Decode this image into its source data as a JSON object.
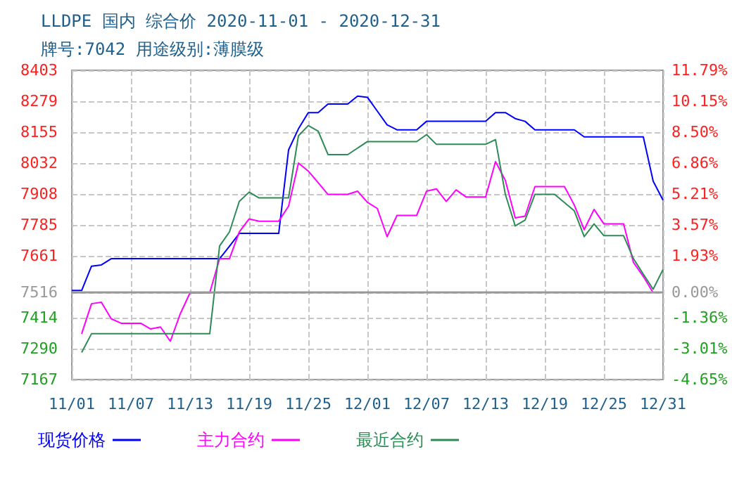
{
  "chart_data": {
    "type": "line",
    "title": "LLDPE 国内 综合价 2020-11-01 - 2020-12-31",
    "subtitle": "牌号:7042 用途级别:薄膜级",
    "xlim": [
      "2020-11-01",
      "2020-12-31"
    ],
    "xticks": [
      {
        "value": "2020-11-01",
        "label": "11/01"
      },
      {
        "value": "2020-11-07",
        "label": "11/07"
      },
      {
        "value": "2020-11-13",
        "label": "11/13"
      },
      {
        "value": "2020-11-19",
        "label": "11/19"
      },
      {
        "value": "2020-11-25",
        "label": "11/25"
      },
      {
        "value": "2020-12-01",
        "label": "12/01"
      },
      {
        "value": "2020-12-07",
        "label": "12/07"
      },
      {
        "value": "2020-12-13",
        "label": "12/13"
      },
      {
        "value": "2020-12-19",
        "label": "12/19"
      },
      {
        "value": "2020-12-25",
        "label": "12/25"
      },
      {
        "value": "2020-12-31",
        "label": "12/31"
      }
    ],
    "ylim": [
      7167,
      8403
    ],
    "yticks": [
      7167,
      7290,
      7414,
      7516,
      7661,
      7785,
      7908,
      8032,
      8155,
      8279,
      8403
    ],
    "y2lim": [
      -4.65,
      11.79
    ],
    "y2ticks": [
      {
        "value": -4.65,
        "label": "-4.65%"
      },
      {
        "value": -3.01,
        "label": "-3.01%"
      },
      {
        "value": -1.36,
        "label": "-1.36%"
      },
      {
        "value": 0,
        "label": "0.00%"
      },
      {
        "value": 1.93,
        "label": "1.93%"
      },
      {
        "value": 3.57,
        "label": "3.57%"
      },
      {
        "value": 5.21,
        "label": "5.21%"
      },
      {
        "value": 6.86,
        "label": "6.86%"
      },
      {
        "value": 8.5,
        "label": "8.50%"
      },
      {
        "value": 10.15,
        "label": "10.15%"
      },
      {
        "value": 11.79,
        "label": "11.79%"
      }
    ],
    "ref_lines": [
      {
        "axis": "y",
        "value": 7516,
        "color": "#999999"
      }
    ],
    "grid": true,
    "legend": "bottom left",
    "marker": "none",
    "line_style": "solid",
    "series": [
      {
        "name": "现货价格",
        "color": "#0000ff",
        "x": [
          "2020-11-01",
          "2020-11-02",
          "2020-11-03",
          "2020-11-04",
          "2020-11-05",
          "2020-11-16",
          "2020-11-17",
          "2020-11-18",
          "2020-11-22",
          "2020-11-23",
          "2020-11-24",
          "2020-11-25",
          "2020-11-26",
          "2020-11-27",
          "2020-11-29",
          "2020-11-30",
          "2020-12-01",
          "2020-12-02",
          "2020-12-03",
          "2020-12-04",
          "2020-12-06",
          "2020-12-07",
          "2020-12-13",
          "2020-12-14",
          "2020-12-15",
          "2020-12-16",
          "2020-12-17",
          "2020-12-18",
          "2020-12-22",
          "2020-12-23",
          "2020-12-29",
          "2020-12-30",
          "2020-12-31"
        ],
        "values": [
          7523,
          7523,
          7620,
          7625,
          7650,
          7650,
          7700,
          7751,
          7751,
          8085,
          8169,
          8234,
          8234,
          8268,
          8268,
          8300,
          8295,
          8240,
          8185,
          8165,
          8165,
          8199,
          8199,
          8234,
          8234,
          8210,
          8199,
          8165,
          8165,
          8137,
          8137,
          7960,
          7884
        ]
      },
      {
        "name": "主力合约",
        "color": "#ff00ff",
        "x": [
          "2020-11-02",
          "2020-11-03",
          "2020-11-04",
          "2020-11-05",
          "2020-11-06",
          "2020-11-08",
          "2020-11-09",
          "2020-11-10",
          "2020-11-11",
          "2020-11-12",
          "2020-11-13",
          "2020-11-15",
          "2020-11-16",
          "2020-11-17",
          "2020-11-18",
          "2020-11-19",
          "2020-11-20",
          "2020-11-22",
          "2020-11-23",
          "2020-11-24",
          "2020-11-25",
          "2020-11-26",
          "2020-11-27",
          "2020-11-29",
          "2020-11-30",
          "2020-12-01",
          "2020-12-02",
          "2020-12-03",
          "2020-12-04",
          "2020-12-06",
          "2020-12-07",
          "2020-12-08",
          "2020-12-09",
          "2020-12-10",
          "2020-12-11",
          "2020-12-13",
          "2020-12-14",
          "2020-12-15",
          "2020-12-16",
          "2020-12-17",
          "2020-12-18",
          "2020-12-21",
          "2020-12-22",
          "2020-12-23",
          "2020-12-24",
          "2020-12-25",
          "2020-12-27",
          "2020-12-28",
          "2020-12-29",
          "2020-12-30"
        ],
        "values": [
          7350,
          7470,
          7476,
          7410,
          7392,
          7392,
          7369,
          7377,
          7320,
          7429,
          7514,
          7514,
          7650,
          7650,
          7757,
          7809,
          7800,
          7800,
          7860,
          8032,
          8000,
          7954,
          7907,
          7907,
          7920,
          7875,
          7851,
          7738,
          7823,
          7823,
          7920,
          7929,
          7879,
          7925,
          7897,
          7897,
          8038,
          7963,
          7813,
          7820,
          7938,
          7938,
          7864,
          7766,
          7847,
          7789,
          7789,
          7635,
          7579,
          7514
        ]
      },
      {
        "name": "最近合约",
        "color": "#2e8b57",
        "x": [
          "2020-11-02",
          "2020-11-03",
          "2020-11-15",
          "2020-11-16",
          "2020-11-17",
          "2020-11-18",
          "2020-11-19",
          "2020-11-20",
          "2020-11-23",
          "2020-11-24",
          "2020-11-25",
          "2020-11-26",
          "2020-11-27",
          "2020-11-29",
          "2020-12-01",
          "2020-12-06",
          "2020-12-07",
          "2020-12-08",
          "2020-12-13",
          "2020-12-14",
          "2020-12-15",
          "2020-12-16",
          "2020-12-17",
          "2020-12-18",
          "2020-12-20",
          "2020-12-22",
          "2020-12-23",
          "2020-12-24",
          "2020-12-25",
          "2020-12-27",
          "2020-12-28",
          "2020-12-29",
          "2020-12-30",
          "2020-12-31"
        ],
        "values": [
          7275,
          7350,
          7350,
          7701,
          7757,
          7879,
          7916,
          7893,
          7893,
          8141,
          8182,
          8160,
          8066,
          8066,
          8118,
          8118,
          8146,
          8107,
          8107,
          8126,
          7907,
          7781,
          7804,
          7907,
          7907,
          7841,
          7738,
          7789,
          7742,
          7742,
          7650,
          7588,
          7528,
          7607
        ]
      }
    ]
  }
}
